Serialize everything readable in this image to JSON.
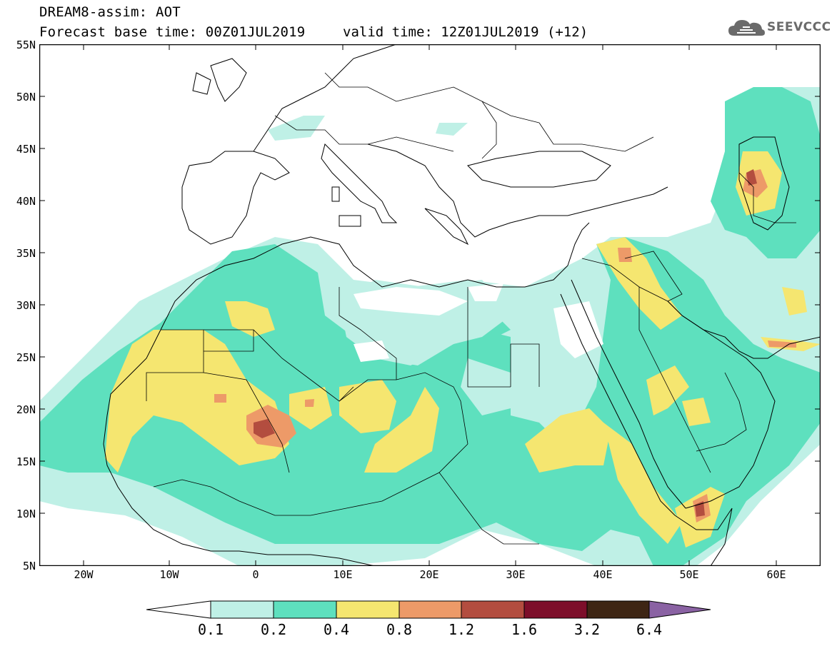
{
  "header": {
    "title_line1": "DREAM8-assim: AOT",
    "title_line2": "Forecast base time: 00Z01JUL2019",
    "valid_time": "valid time: 12Z01JUL2019 (+12)",
    "logo_text": "SEEVCCC",
    "logo_icon": "cloud-icon"
  },
  "axes": {
    "lat_labels": [
      "55N",
      "50N",
      "45N",
      "40N",
      "35N",
      "30N",
      "25N",
      "20N",
      "15N",
      "10N",
      "5N"
    ],
    "lon_labels": [
      "20W",
      "10W",
      "0",
      "10E",
      "20E",
      "30E",
      "40E",
      "50E",
      "60E"
    ]
  },
  "legend": {
    "labels": [
      "0.1",
      "0.2",
      "0.4",
      "0.8",
      "1.2",
      "1.6",
      "3.2",
      "6.4"
    ],
    "colors": [
      "#ffffff",
      "#bff0e6",
      "#5ee0be",
      "#f5e670",
      "#ed9a68",
      "#b34d3f",
      "#7d0e2a",
      "#3e2614",
      "#8a62a3"
    ]
  },
  "colors": {
    "contour_0_1": "#bff0e6",
    "contour_0_2": "#5ee0be",
    "contour_0_4": "#f5e670",
    "contour_0_8": "#ed9a68",
    "contour_1_2": "#b34d3f",
    "contour_1_6": "#7d0e2a"
  }
}
